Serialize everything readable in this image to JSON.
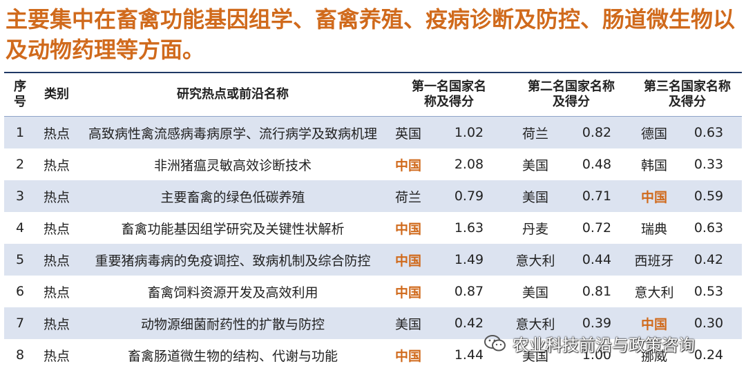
{
  "title": "主要集中在畜禽功能基因组学、畜禽养殖、疫病诊断及防控、肠道微生物以及动物药理等方面。",
  "header": {
    "no": "序号",
    "type": "类别",
    "topic": "研究热点或前沿名称",
    "first": "第一名国家名称及得分",
    "second": "第二名国家名称及得分",
    "third": "第三名国家名称及得分"
  },
  "rows": [
    {
      "no": "1",
      "type": "热点",
      "topic": "高致病性禽流感病毒病原学、流行病学及致病机理",
      "c1": "英国",
      "s1": "1.02",
      "c2": "荷兰",
      "s2": "0.82",
      "c3": "德国",
      "s3": "0.63"
    },
    {
      "no": "2",
      "type": "热点",
      "topic": "非洲猪瘟灵敏高效诊断技术",
      "c1": "中国",
      "s1": "2.08",
      "c2": "美国",
      "s2": "0.48",
      "c3": "韩国",
      "s3": "0.33"
    },
    {
      "no": "3",
      "type": "热点",
      "topic": "主要畜禽的绿色低碳养殖",
      "c1": "荷兰",
      "s1": "0.79",
      "c2": "美国",
      "s2": "0.71",
      "c3": "中国",
      "s3": "0.59"
    },
    {
      "no": "4",
      "type": "热点",
      "topic": "畜禽功能基因组学研究及关键性状解析",
      "c1": "中国",
      "s1": "1.63",
      "c2": "丹麦",
      "s2": "0.72",
      "c3": "瑞典",
      "s3": "0.63"
    },
    {
      "no": "5",
      "type": "热点",
      "topic": "重要猪病毒病的免疫调控、致病机制及综合防控",
      "c1": "中国",
      "s1": "1.49",
      "c2": "意大利",
      "s2": "0.44",
      "c3": "西班牙",
      "s3": "0.42"
    },
    {
      "no": "6",
      "type": "热点",
      "topic": "畜禽饲料资源开发及高效利用",
      "c1": "中国",
      "s1": "0.87",
      "c2": "美国",
      "s2": "0.81",
      "c3": "意大利",
      "s3": "0.53"
    },
    {
      "no": "7",
      "type": "热点",
      "topic": "动物源细菌耐药性的扩散与防控",
      "c1": "美国",
      "s1": "0.42",
      "c2": "意大利",
      "s2": "0.39",
      "c3": "中国",
      "s3": "0.30"
    },
    {
      "no": "8",
      "type": "热点",
      "topic": "畜禽肠道微生物的结构、代谢与功能",
      "c1": "中国",
      "s1": "1.44",
      "c2": "美国",
      "s2": "1.00",
      "c3": "挪威",
      "s3": "0.24"
    }
  ],
  "watermark": {
    "text": "农业科技前沿与政策咨询",
    "icon": "wechat-icon"
  },
  "colors": {
    "accent": "#D06A1C",
    "row_shade": "#DCE3F0",
    "rule": "#1F3864"
  }
}
